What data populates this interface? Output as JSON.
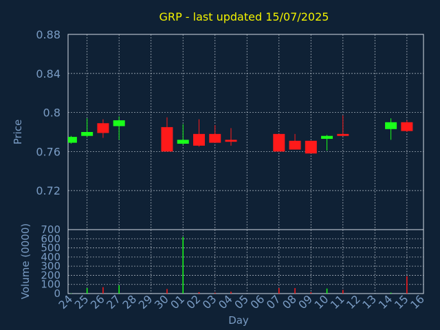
{
  "chart_data": {
    "type": "candlestick",
    "title": "GRP - last updated 15/07/2025",
    "xlabel": "Day",
    "price_panel": {
      "ylabel": "Price",
      "ylim": [
        0.68,
        0.88
      ],
      "yticks": [
        "0.88",
        "0.84",
        "0.8",
        "0.76",
        "0.72"
      ],
      "grid": true
    },
    "volume_panel": {
      "ylabel": "Volume (0000)",
      "ylim": [
        0,
        700
      ],
      "yticks": [
        "700",
        "600",
        "500",
        "400",
        "300",
        "200",
        "100",
        "0"
      ],
      "grid": true
    },
    "x_tick_labels": [
      "24",
      "25",
      "26",
      "27",
      "28",
      "29",
      "30",
      "01",
      "02",
      "03",
      "04",
      "05",
      "06",
      "07",
      "08",
      "09",
      "10",
      "11",
      "12",
      "13",
      "14",
      "15",
      "16"
    ],
    "x_gridlines_at": [
      "25",
      "27",
      "29",
      "01",
      "03",
      "05",
      "07",
      "09",
      "11",
      "13",
      "15"
    ],
    "candles": [
      {
        "day": "24",
        "open": 0.769,
        "high": 0.776,
        "low": 0.768,
        "close": 0.775
      },
      {
        "day": "25",
        "open": 0.776,
        "high": 0.794,
        "low": 0.775,
        "close": 0.78
      },
      {
        "day": "26",
        "open": 0.789,
        "high": 0.793,
        "low": 0.774,
        "close": 0.779
      },
      {
        "day": "27",
        "open": 0.786,
        "high": 0.796,
        "low": 0.772,
        "close": 0.792
      },
      {
        "day": "30",
        "open": 0.785,
        "high": 0.795,
        "low": 0.76,
        "close": 0.76
      },
      {
        "day": "01",
        "open": 0.768,
        "high": 0.788,
        "low": 0.767,
        "close": 0.772
      },
      {
        "day": "02",
        "open": 0.778,
        "high": 0.793,
        "low": 0.765,
        "close": 0.766
      },
      {
        "day": "03",
        "open": 0.778,
        "high": 0.787,
        "low": 0.769,
        "close": 0.769
      },
      {
        "day": "04",
        "open": 0.772,
        "high": 0.784,
        "low": 0.766,
        "close": 0.77
      },
      {
        "day": "07",
        "open": 0.778,
        "high": 0.778,
        "low": 0.76,
        "close": 0.76
      },
      {
        "day": "08",
        "open": 0.771,
        "high": 0.778,
        "low": 0.762,
        "close": 0.762
      },
      {
        "day": "09",
        "open": 0.771,
        "high": 0.771,
        "low": 0.758,
        "close": 0.758
      },
      {
        "day": "10",
        "open": 0.773,
        "high": 0.777,
        "low": 0.761,
        "close": 0.776
      },
      {
        "day": "11",
        "open": 0.778,
        "high": 0.797,
        "low": 0.776,
        "close": 0.776
      },
      {
        "day": "14",
        "open": 0.783,
        "high": 0.794,
        "low": 0.772,
        "close": 0.79
      },
      {
        "day": "15",
        "open": 0.79,
        "high": 0.792,
        "low": 0.78,
        "close": 0.781
      }
    ],
    "volume": [
      {
        "day": "24",
        "value": 3,
        "direction": "up"
      },
      {
        "day": "25",
        "value": 60,
        "direction": "up"
      },
      {
        "day": "26",
        "value": 70,
        "direction": "down"
      },
      {
        "day": "27",
        "value": 90,
        "direction": "up"
      },
      {
        "day": "30",
        "value": 50,
        "direction": "down"
      },
      {
        "day": "01",
        "value": 620,
        "direction": "up"
      },
      {
        "day": "02",
        "value": 15,
        "direction": "down"
      },
      {
        "day": "03",
        "value": 10,
        "direction": "down"
      },
      {
        "day": "04",
        "value": 20,
        "direction": "down"
      },
      {
        "day": "07",
        "value": 60,
        "direction": "down"
      },
      {
        "day": "08",
        "value": 60,
        "direction": "down"
      },
      {
        "day": "09",
        "value": 15,
        "direction": "down"
      },
      {
        "day": "10",
        "value": 55,
        "direction": "up"
      },
      {
        "day": "11",
        "value": 40,
        "direction": "down"
      },
      {
        "day": "14",
        "value": 10,
        "direction": "up"
      },
      {
        "day": "15",
        "value": 190,
        "direction": "down"
      }
    ],
    "colors": {
      "background": "#0f2135",
      "title": "#f2f200",
      "axis_text": "#7a9cc4",
      "grid": "#d6dde6",
      "up": "#1aff1a",
      "down": "#ff1a1a"
    }
  }
}
